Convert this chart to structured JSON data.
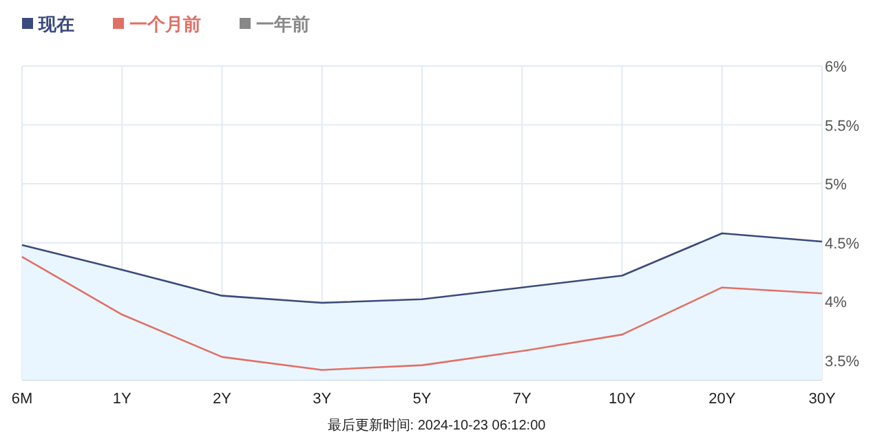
{
  "chart_data": {
    "type": "line",
    "categories": [
      "6M",
      "1Y",
      "2Y",
      "3Y",
      "5Y",
      "7Y",
      "10Y",
      "20Y",
      "30Y"
    ],
    "series": [
      {
        "name": "现在",
        "type": "area",
        "color": "#3b4a7c",
        "values": [
          4.48,
          4.27,
          4.05,
          3.99,
          4.02,
          4.12,
          4.22,
          4.58,
          4.51
        ]
      },
      {
        "name": "一个月前",
        "color": "#e07066",
        "values": [
          4.38,
          3.89,
          3.53,
          3.42,
          3.46,
          3.58,
          3.72,
          4.12,
          4.07
        ]
      },
      {
        "name": "一年前",
        "color": "#888888",
        "values": [
          null,
          null,
          null,
          null,
          null,
          null,
          null,
          null,
          null
        ]
      }
    ],
    "ylim": [
      3.335,
      6
    ],
    "yticks": [
      {
        "value": 3.5,
        "label": "3.5%"
      },
      {
        "value": 4,
        "label": "4%"
      },
      {
        "value": 4.5,
        "label": "4.5%"
      },
      {
        "value": 5,
        "label": "5%"
      },
      {
        "value": 5.5,
        "label": "5.5%"
      },
      {
        "value": 6,
        "label": "6%"
      }
    ],
    "grid": true,
    "legend": "top left",
    "annotations": [
      "最后更新时间: 2024-10-23 06:12:00"
    ]
  }
}
